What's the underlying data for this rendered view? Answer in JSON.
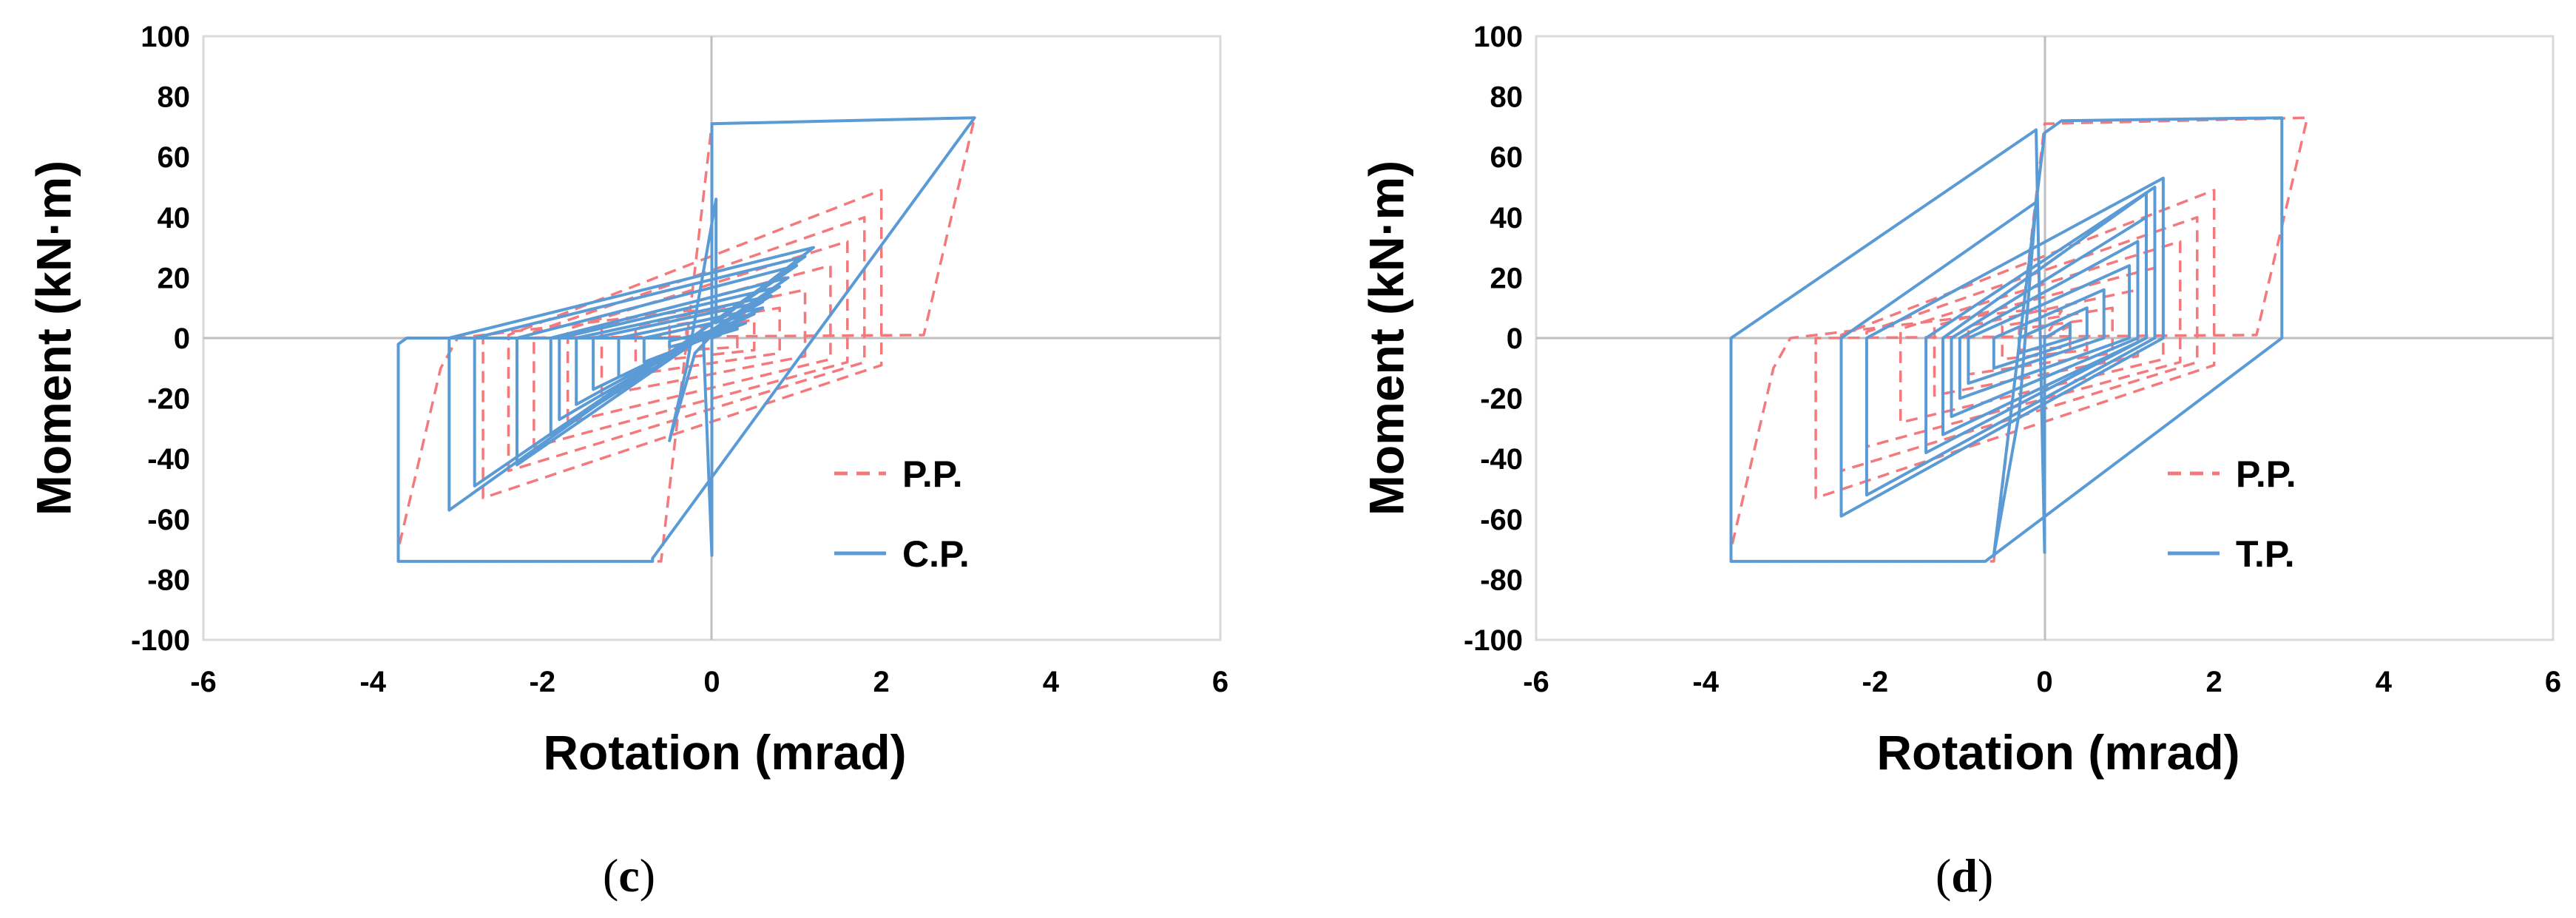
{
  "chart_data": [
    {
      "type": "line",
      "caption_open": "(",
      "caption_letter": "c",
      "caption_close": ")",
      "xlabel": "Rotation (mrad)",
      "ylabel": "Moment (kN·m)",
      "xlim": [
        -6,
        6
      ],
      "ylim": [
        -100,
        100
      ],
      "xticks": [
        -6,
        -4,
        -2,
        0,
        2,
        4,
        6
      ],
      "yticks": [
        100,
        80,
        60,
        40,
        20,
        0,
        -20,
        -40,
        -60,
        -80,
        -100
      ],
      "grid": "zero-lines",
      "legend_position": "bottom-right",
      "series": [
        {
          "name": "P.P.",
          "style": "dashed",
          "color": "#F4797C",
          "points": [
            [
              0,
              0
            ],
            [
              0.3,
              4
            ],
            [
              0.3,
              -3
            ],
            [
              -0.3,
              -4
            ],
            [
              -0.3,
              3
            ],
            [
              0.5,
              6
            ],
            [
              0.5,
              -4
            ],
            [
              -0.5,
              -7
            ],
            [
              -0.5,
              4
            ],
            [
              0.8,
              10
            ],
            [
              0.8,
              -5
            ],
            [
              -0.9,
              -12
            ],
            [
              -0.9,
              4
            ],
            [
              1.1,
              16
            ],
            [
              1.1,
              -6
            ],
            [
              -1.3,
              -19
            ],
            [
              -1.3,
              4
            ],
            [
              1.4,
              24
            ],
            [
              1.4,
              -7
            ],
            [
              -1.7,
              -28
            ],
            [
              -1.7,
              3
            ],
            [
              1.6,
              32
            ],
            [
              1.6,
              -8
            ],
            [
              -2.1,
              -36
            ],
            [
              -2.1,
              2
            ],
            [
              1.8,
              40
            ],
            [
              1.8,
              -8
            ],
            [
              -2.4,
              -44
            ],
            [
              -2.4,
              1
            ],
            [
              2.0,
              49
            ],
            [
              2.0,
              -9
            ],
            [
              -2.7,
              -53
            ],
            [
              -2.7,
              0
            ],
            [
              2.5,
              1
            ],
            [
              3.1,
              73
            ],
            [
              0,
              71
            ],
            [
              -0.6,
              -74
            ],
            [
              -3.7,
              -74
            ],
            [
              -3.7,
              -70
            ],
            [
              -3.2,
              -10
            ],
            [
              -3,
              0
            ],
            [
              -0.3,
              9
            ],
            [
              0.2,
              9
            ],
            [
              0,
              0
            ]
          ]
        },
        {
          "name": "C.P.",
          "style": "solid",
          "color": "#5B9BD5",
          "points": [
            [
              0,
              0
            ],
            [
              0.1,
              1
            ],
            [
              -0.3,
              -1
            ],
            [
              -0.3,
              -2
            ],
            [
              0.3,
              3
            ],
            [
              -0.5,
              -3
            ],
            [
              -0.5,
              -1
            ],
            [
              0.4,
              5
            ],
            [
              -0.8,
              -8
            ],
            [
              -0.8,
              0
            ],
            [
              0.5,
              8
            ],
            [
              -1.1,
              -13
            ],
            [
              -1.1,
              0
            ],
            [
              0.6,
              10
            ],
            [
              -1.4,
              -17
            ],
            [
              -1.4,
              0
            ],
            [
              0.6,
              12
            ],
            [
              -1.6,
              -22
            ],
            [
              -1.6,
              0
            ],
            [
              0.7,
              14
            ],
            [
              -1.8,
              -27
            ],
            [
              -1.8,
              0
            ],
            [
              0.8,
              17
            ],
            [
              -1.9,
              -32
            ],
            [
              -1.9,
              0
            ],
            [
              0.9,
              20
            ],
            [
              -2.3,
              -42
            ],
            [
              -2.3,
              0
            ],
            [
              1.0,
              24
            ],
            [
              -2.8,
              -49
            ],
            [
              -2.8,
              0
            ],
            [
              1.1,
              27
            ],
            [
              -3.1,
              -57
            ],
            [
              -3.1,
              0
            ],
            [
              1.2,
              30
            ],
            [
              0.05,
              5
            ],
            [
              0.05,
              46
            ],
            [
              -0.3,
              -10
            ],
            [
              -0.5,
              -34
            ],
            [
              -0.2,
              -5
            ],
            [
              0,
              1
            ],
            [
              0,
              71
            ],
            [
              3.1,
              73
            ],
            [
              -0.7,
              -73
            ],
            [
              -0.7,
              -74
            ],
            [
              -3.7,
              -74
            ],
            [
              -3.7,
              -2
            ],
            [
              -3.6,
              0
            ],
            [
              -0.1,
              0
            ],
            [
              0,
              -72
            ],
            [
              0,
              1
            ]
          ]
        }
      ]
    },
    {
      "type": "line",
      "caption_open": "(",
      "caption_letter": "d",
      "caption_close": ")",
      "xlabel": "Rotation (mrad)",
      "ylabel": "Moment (kN·m)",
      "xlim": [
        -6,
        6
      ],
      "ylim": [
        -100,
        100
      ],
      "xticks": [
        -6,
        -4,
        -2,
        0,
        2,
        4,
        6
      ],
      "yticks": [
        100,
        80,
        60,
        40,
        20,
        0,
        -20,
        -40,
        -60,
        -80,
        -100
      ],
      "grid": "zero-lines",
      "legend_position": "bottom-right",
      "series": [
        {
          "name": "P.P.",
          "style": "dashed",
          "color": "#F4797C",
          "points": [
            [
              0,
              0
            ],
            [
              0.3,
              4
            ],
            [
              0.3,
              -3
            ],
            [
              -0.3,
              -4
            ],
            [
              -0.3,
              3
            ],
            [
              0.5,
              6
            ],
            [
              0.5,
              -4
            ],
            [
              -0.5,
              -7
            ],
            [
              -0.5,
              4
            ],
            [
              0.8,
              10
            ],
            [
              0.8,
              -5
            ],
            [
              -0.9,
              -12
            ],
            [
              -0.9,
              4
            ],
            [
              1.1,
              16
            ],
            [
              1.1,
              -6
            ],
            [
              -1.3,
              -19
            ],
            [
              -1.3,
              4
            ],
            [
              1.4,
              24
            ],
            [
              1.4,
              -7
            ],
            [
              -1.7,
              -28
            ],
            [
              -1.7,
              3
            ],
            [
              1.6,
              32
            ],
            [
              1.6,
              -8
            ],
            [
              -2.1,
              -36
            ],
            [
              -2.1,
              2
            ],
            [
              1.8,
              40
            ],
            [
              1.8,
              -8
            ],
            [
              -2.4,
              -44
            ],
            [
              -2.4,
              1
            ],
            [
              2.0,
              49
            ],
            [
              2.0,
              -9
            ],
            [
              -2.7,
              -53
            ],
            [
              -2.7,
              0
            ],
            [
              2.5,
              1
            ],
            [
              3.1,
              73
            ],
            [
              0,
              71
            ],
            [
              -0.6,
              -74
            ],
            [
              -3.7,
              -74
            ],
            [
              -3.7,
              -70
            ],
            [
              -3.2,
              -10
            ],
            [
              -3,
              0
            ],
            [
              -0.3,
              9
            ],
            [
              0.2,
              9
            ],
            [
              0,
              0
            ]
          ]
        },
        {
          "name": "T.P.",
          "style": "solid",
          "color": "#5B9BD5",
          "points": [
            [
              0,
              0
            ],
            [
              0.3,
              5
            ],
            [
              0.3,
              0
            ],
            [
              -0.3,
              -5
            ],
            [
              -0.3,
              0
            ],
            [
              0.5,
              10
            ],
            [
              0.5,
              0
            ],
            [
              -0.6,
              -10
            ],
            [
              -0.6,
              0
            ],
            [
              0.7,
              16
            ],
            [
              0.7,
              0
            ],
            [
              -0.9,
              -15
            ],
            [
              -0.9,
              0
            ],
            [
              1.0,
              24
            ],
            [
              1.0,
              0
            ],
            [
              -1.0,
              -20
            ],
            [
              -1.0,
              0
            ],
            [
              1.1,
              32
            ],
            [
              1.1,
              0
            ],
            [
              -1.1,
              -26
            ],
            [
              -1.1,
              0
            ],
            [
              1.2,
              40
            ],
            [
              1.2,
              0
            ],
            [
              -1.2,
              -32
            ],
            [
              -1.2,
              0
            ],
            [
              1.2,
              48
            ],
            [
              1.2,
              0
            ],
            [
              -1.4,
              -38
            ],
            [
              -1.4,
              0
            ],
            [
              1.3,
              50
            ],
            [
              1.3,
              0
            ],
            [
              -2.1,
              -52
            ],
            [
              -2.1,
              0
            ],
            [
              1.4,
              53
            ],
            [
              1.4,
              0
            ],
            [
              -2.4,
              -59
            ],
            [
              -2.4,
              0
            ],
            [
              -0.1,
              45
            ],
            [
              -0.3,
              -25
            ],
            [
              -0.6,
              -72
            ],
            [
              0,
              68
            ],
            [
              0.2,
              72
            ],
            [
              2.8,
              73
            ],
            [
              2.8,
              0
            ],
            [
              -0.7,
              -74
            ],
            [
              -3.7,
              -74
            ],
            [
              -3.7,
              0
            ],
            [
              -0.1,
              69
            ],
            [
              0,
              -71
            ],
            [
              0,
              1
            ]
          ]
        }
      ]
    }
  ]
}
